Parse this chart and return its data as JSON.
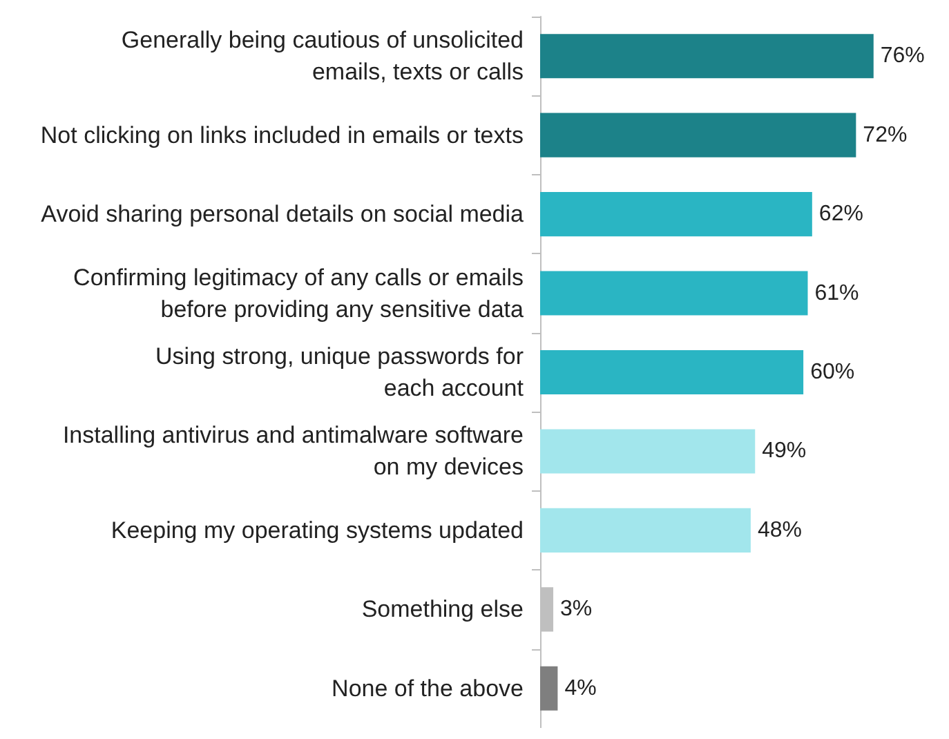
{
  "chart_data": {
    "type": "bar",
    "orientation": "horizontal",
    "categories": [
      "Generally being cautious of unsolicited\nemails, texts or calls",
      "Not clicking on links included in emails or texts",
      "Avoid sharing personal details on social media",
      "Confirming legitimacy of any calls or emails\nbefore providing any sensitive data",
      "Using strong, unique passwords for\neach account",
      "Installing antivirus and antimalware software\non my devices",
      "Keeping my operating systems updated",
      "Something else",
      "None of the above"
    ],
    "values": [
      76,
      72,
      62,
      61,
      60,
      49,
      48,
      3,
      4
    ],
    "value_labels": [
      "76%",
      "72%",
      "62%",
      "61%",
      "60%",
      "49%",
      "48%",
      "3%",
      "4%"
    ],
    "colors": [
      "#1c8289",
      "#1c8289",
      "#2ab5c3",
      "#2ab5c3",
      "#2ab5c3",
      "#a2e6ec",
      "#a2e6ec",
      "#bfbfbf",
      "#7f7f7f"
    ]
  }
}
